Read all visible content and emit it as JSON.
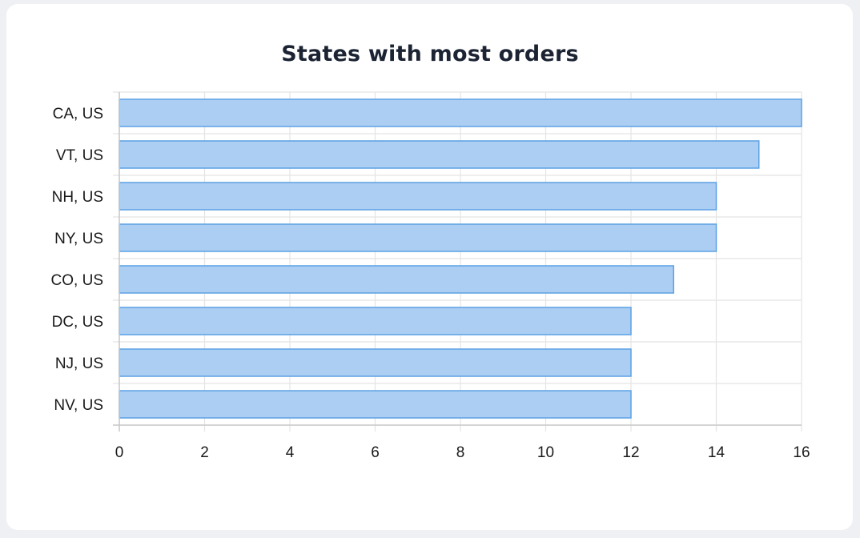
{
  "chart_data": {
    "type": "bar",
    "orientation": "horizontal",
    "title": "States with most orders",
    "categories": [
      "CA, US",
      "VT, US",
      "NH, US",
      "NY, US",
      "CO, US",
      "DC, US",
      "NJ, US",
      "NV, US"
    ],
    "values": [
      16,
      15,
      14,
      14,
      13,
      12,
      12,
      12
    ],
    "xlim": [
      0,
      16
    ],
    "x_ticks": [
      0,
      2,
      4,
      6,
      8,
      10,
      12,
      14,
      16
    ],
    "grid": true,
    "legend": "none",
    "colors": {
      "bar_fill": "#abcef2",
      "bar_stroke": "#5ca1e4",
      "grid": "#e4e4e4"
    }
  }
}
